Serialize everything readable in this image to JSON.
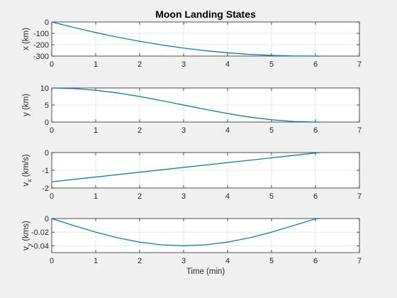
{
  "chart_data": {
    "type": "line",
    "title": "Moon Landing States",
    "series_color": "#0072bd",
    "grid": true,
    "subplots": [
      {
        "name": "x",
        "ylabel": "x (km)",
        "xlabel": "",
        "xlim": [
          0,
          7
        ],
        "ylim": [
          -300,
          0
        ],
        "xticks": [
          "0",
          "1",
          "2",
          "3",
          "4",
          "5",
          "6",
          "7"
        ],
        "yticks": [
          {
            "v": 0,
            "label": "0"
          },
          {
            "v": -100,
            "label": "-100"
          },
          {
            "v": -200,
            "label": "-200"
          },
          {
            "v": -300,
            "label": "-300"
          }
        ],
        "x": [
          0,
          0.5,
          1,
          1.5,
          2,
          2.5,
          3,
          3.5,
          4,
          4.5,
          5,
          5.5,
          6,
          6.1
        ],
        "y": [
          0,
          -48,
          -93,
          -134,
          -170,
          -202,
          -230,
          -253,
          -271,
          -285,
          -294,
          -299,
          -300,
          -300
        ]
      },
      {
        "name": "y",
        "ylabel": "y (km)",
        "xlabel": "",
        "xlim": [
          0,
          7
        ],
        "ylim": [
          0,
          10
        ],
        "xticks": [
          "0",
          "1",
          "2",
          "3",
          "4",
          "5",
          "6",
          "7"
        ],
        "yticks": [
          {
            "v": 0,
            "label": "0"
          },
          {
            "v": 5,
            "label": "5"
          },
          {
            "v": 10,
            "label": "10"
          }
        ],
        "x": [
          0,
          0.5,
          1,
          1.5,
          2,
          2.5,
          3,
          3.5,
          4,
          4.5,
          5,
          5.5,
          6,
          6.1
        ],
        "y": [
          10,
          9.83,
          9.33,
          8.54,
          7.5,
          6.29,
          5.0,
          3.71,
          2.5,
          1.46,
          0.67,
          0.17,
          0.0,
          0.0
        ]
      },
      {
        "name": "vx",
        "ylabel": "v",
        "ylabel_sub": "x",
        "ylabel_rest": " (km/s)",
        "xlabel": "",
        "xlim": [
          0,
          7
        ],
        "ylim": [
          -2,
          0
        ],
        "xticks": [
          "0",
          "1",
          "2",
          "3",
          "4",
          "5",
          "6",
          "7"
        ],
        "yticks": [
          {
            "v": 0,
            "label": "0"
          },
          {
            "v": -1,
            "label": "-1"
          },
          {
            "v": -2,
            "label": "-2"
          }
        ],
        "x": [
          0,
          6.1
        ],
        "y": [
          -1.65,
          0
        ]
      },
      {
        "name": "vy",
        "ylabel": "v",
        "ylabel_sub": "y",
        "ylabel_rest": " (kms)",
        "xlabel": "Time (min)",
        "xlim": [
          0,
          7
        ],
        "ylim": [
          -0.05,
          0
        ],
        "xticks": [
          "0",
          "1",
          "2",
          "3",
          "4",
          "5",
          "6",
          "7"
        ],
        "yticks": [
          {
            "v": 0,
            "label": "0"
          },
          {
            "v": -0.02,
            "label": "-0.02"
          },
          {
            "v": -0.04,
            "label": "-0.04"
          }
        ],
        "x": [
          0,
          0.5,
          1,
          1.5,
          2,
          2.5,
          3,
          3.5,
          4,
          4.5,
          5,
          5.5,
          6,
          6.1
        ],
        "y": [
          0,
          -0.0104,
          -0.02,
          -0.0283,
          -0.0346,
          -0.0386,
          -0.04,
          -0.0386,
          -0.0346,
          -0.0283,
          -0.02,
          -0.0104,
          -0.0005,
          0
        ]
      }
    ]
  }
}
